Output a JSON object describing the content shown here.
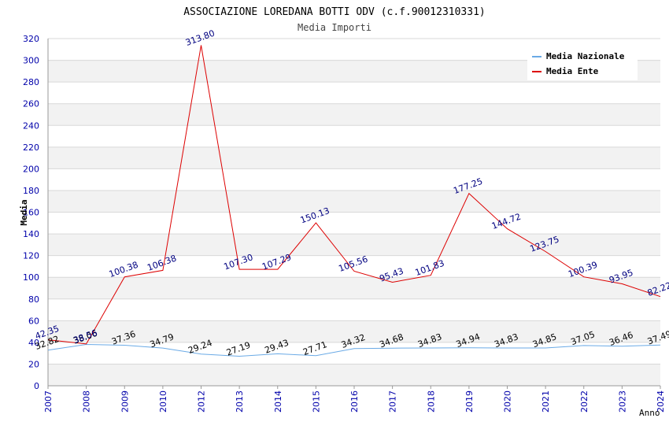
{
  "chart_data": {
    "type": "line",
    "title": "ASSOCIAZIONE LOREDANA BOTTI ODV (c.f.90012310331)",
    "subtitle": "Media Importi",
    "xlabel": "Anno",
    "ylabel": "Media",
    "ylim": [
      0,
      320
    ],
    "yticks": [
      0,
      20,
      40,
      60,
      80,
      100,
      120,
      140,
      160,
      180,
      200,
      220,
      240,
      260,
      280,
      300,
      320
    ],
    "grid": true,
    "legend_position": "top-right",
    "categories": [
      "2007",
      "2008",
      "2009",
      "2010",
      "2012",
      "2013",
      "2014",
      "2015",
      "2016",
      "2017",
      "2018",
      "2019",
      "2020",
      "2021",
      "2022",
      "2023",
      "2024"
    ],
    "series": [
      {
        "name": "Media Nazionale",
        "color": "#6aaae6",
        "label_color": "#000000",
        "values": [
          32.82,
          38.06,
          37.36,
          34.79,
          29.24,
          27.19,
          29.43,
          27.71,
          34.32,
          34.68,
          34.83,
          34.94,
          34.83,
          34.85,
          37.05,
          36.46,
          37.49
        ],
        "labels": [
          "32.82",
          "38.06",
          "37.36",
          "34.79",
          "29.24",
          "27.19",
          "29.43",
          "27.71",
          "34.32",
          "34.68",
          "34.83",
          "34.94",
          "34.83",
          "34.85",
          "37.05",
          "36.46",
          "37.49"
        ]
      },
      {
        "name": "Media Ente",
        "color": "#dd0000",
        "label_color": "#000080",
        "values": [
          42.35,
          38.56,
          100.38,
          106.38,
          313.8,
          107.3,
          107.29,
          150.13,
          105.56,
          95.43,
          101.83,
          177.25,
          144.72,
          123.75,
          100.39,
          93.95,
          82.22
        ],
        "labels": [
          "42.35",
          "38.56",
          "100.38",
          "106.38",
          "313.80",
          "107.30",
          "107.29",
          "150.13",
          "105.56",
          "95.43",
          "101.83",
          "177.25",
          "144.72",
          "123.75",
          "100.39",
          "93.95",
          "82.22"
        ]
      }
    ]
  },
  "colors": {
    "axis_text": "#0000aa",
    "band": "#f2f2f2",
    "grid": "#d8d8d8"
  }
}
